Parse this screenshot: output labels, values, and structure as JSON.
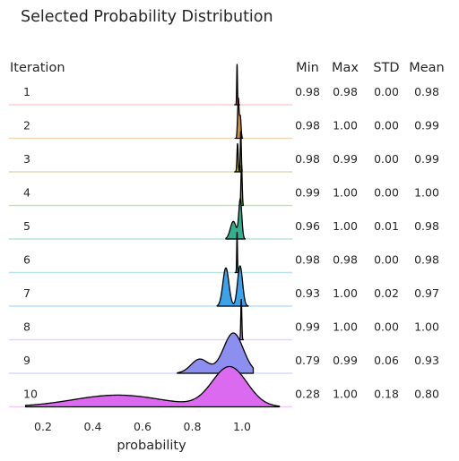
{
  "chart_data": {
    "type": "ridgeline",
    "title": "Selected Probability Distribution",
    "row_header": "Iteration",
    "xlabel": "probability",
    "xlim": [
      0.12,
      1.16
    ],
    "x_ticks": [
      0.2,
      0.4,
      0.6,
      0.8,
      1.0
    ],
    "x_tick_labels": [
      "0.2",
      "0.4",
      "0.6",
      "0.8",
      "1.0"
    ],
    "stat_headers": [
      "Min",
      "Max",
      "STD",
      "Mean"
    ],
    "rows": [
      {
        "label": "1",
        "color": "#f77189",
        "min": "0.98",
        "max": "0.98",
        "std": "0.00",
        "mean": "0.98",
        "peaks": [
          [
            0.98,
            0.0015,
            1.0
          ]
        ],
        "range": [
          0.97,
          0.99
        ]
      },
      {
        "label": "2",
        "color": "#d58c32",
        "min": "0.98",
        "max": "1.00",
        "std": "0.00",
        "mean": "0.99",
        "peaks": [
          [
            0.985,
            0.003,
            1.0
          ],
          [
            0.993,
            0.003,
            0.55
          ]
        ],
        "range": [
          0.972,
          1.002
        ]
      },
      {
        "label": "3",
        "color": "#a4a031",
        "min": "0.98",
        "max": "0.99",
        "std": "0.00",
        "mean": "0.99",
        "peaks": [
          [
            0.982,
            0.0025,
            0.7
          ],
          [
            0.995,
            0.002,
            1.0
          ]
        ],
        "range": [
          0.97,
          1.0
        ]
      },
      {
        "label": "4",
        "color": "#50b131",
        "min": "0.99",
        "max": "1.00",
        "std": "0.00",
        "mean": "1.00",
        "peaks": [
          [
            0.998,
            0.0025,
            1.0
          ]
        ],
        "range": [
          0.988,
          1.005
        ]
      },
      {
        "label": "5",
        "color": "#34ae91",
        "min": "0.96",
        "max": "1.00",
        "std": "0.01",
        "mean": "0.98",
        "peaks": [
          [
            0.965,
            0.012,
            0.45
          ],
          [
            0.993,
            0.006,
            1.0
          ]
        ],
        "range": [
          0.935,
          1.012
        ]
      },
      {
        "label": "6",
        "color": "#37abb5",
        "min": "0.98",
        "max": "0.98",
        "std": "0.00",
        "mean": "0.98",
        "peaks": [
          [
            0.98,
            0.0015,
            1.0
          ]
        ],
        "range": [
          0.972,
          0.988
        ]
      },
      {
        "label": "7",
        "color": "#3ba3ec",
        "min": "0.93",
        "max": "1.00",
        "std": "0.02",
        "mean": "0.97",
        "peaks": [
          [
            0.935,
            0.012,
            0.95
          ],
          [
            0.992,
            0.01,
            1.0
          ]
        ],
        "range": [
          0.9,
          1.025
        ]
      },
      {
        "label": "8",
        "color": "#bb83f4",
        "min": "0.99",
        "max": "1.00",
        "std": "0.00",
        "mean": "1.00",
        "peaks": [
          [
            0.997,
            0.002,
            1.0
          ]
        ],
        "range": [
          0.988,
          1.005
        ]
      },
      {
        "label": "9",
        "color": "#8c8ff0",
        "min": "0.79",
        "max": "0.99",
        "std": "0.06",
        "mean": "0.93",
        "peaks": [
          [
            0.83,
            0.035,
            0.35
          ],
          [
            0.965,
            0.04,
            1.0
          ]
        ],
        "range": [
          0.74,
          1.045
        ]
      },
      {
        "label": "10",
        "color": "#dc6af0",
        "min": "0.28",
        "max": "1.00",
        "std": "0.18",
        "mean": "0.80",
        "peaks": [
          [
            0.5,
            0.18,
            0.28
          ],
          [
            0.95,
            0.07,
            0.95
          ]
        ],
        "range": [
          0.13,
          1.15
        ]
      }
    ]
  }
}
